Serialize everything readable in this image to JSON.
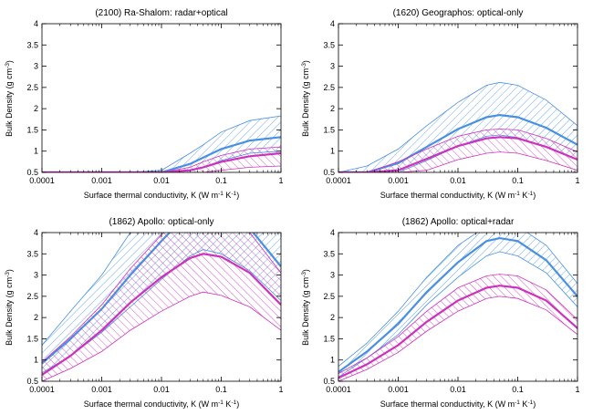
{
  "colors": {
    "blue": "#4a90e2",
    "magenta": "#cc33bb",
    "frame": "#000000"
  },
  "chart_data": [
    {
      "type": "line",
      "title": "(2100) Ra-Shalom: radar+optical",
      "xlabel": "Surface thermal conductivity, K (W m",
      "ylabel": "Bulk Density (g cm",
      "xscale": "log",
      "xlim": [
        0.0001,
        1
      ],
      "ylim": [
        0.5,
        4
      ],
      "xticks": [
        "0.0001",
        "0.001",
        "0.01",
        "0.1",
        "1"
      ],
      "yticks": [
        "0.5",
        "1",
        "1.5",
        "2",
        "2.5",
        "3",
        "3.5",
        "4"
      ],
      "x": [
        0.0001,
        0.0003,
        0.001,
        0.003,
        0.01,
        0.03,
        0.05,
        0.1,
        0.3,
        1
      ],
      "series": [
        {
          "color": "blue",
          "band": true,
          "mid": [
            0.5,
            0.5,
            0.5,
            0.5,
            0.5,
            0.7,
            0.85,
            1.05,
            1.25,
            1.33
          ],
          "lower": [
            0.5,
            0.5,
            0.5,
            0.5,
            0.5,
            0.55,
            0.62,
            0.78,
            0.95,
            1.0
          ],
          "upper": [
            0.5,
            0.5,
            0.5,
            0.5,
            0.55,
            0.95,
            1.15,
            1.45,
            1.72,
            1.83
          ]
        },
        {
          "color": "magenta",
          "band": true,
          "mid": [
            0.5,
            0.5,
            0.5,
            0.5,
            0.5,
            0.55,
            0.62,
            0.75,
            0.88,
            0.95
          ],
          "lower": [
            0.5,
            0.5,
            0.5,
            0.5,
            0.5,
            0.5,
            0.5,
            0.55,
            0.62,
            0.65
          ],
          "upper": [
            0.5,
            0.5,
            0.5,
            0.5,
            0.5,
            0.62,
            0.75,
            0.9,
            1.05,
            1.1
          ]
        }
      ]
    },
    {
      "type": "line",
      "title": "(1620) Geographos: optical-only",
      "xlabel": "Surface thermal conductivity, K (W m",
      "ylabel": "Bulk Density (g cm",
      "xscale": "log",
      "xlim": [
        0.0001,
        1
      ],
      "ylim": [
        0.5,
        4
      ],
      "xticks": [
        "0.0001",
        "0.001",
        "0.01",
        "0.1",
        "1"
      ],
      "yticks": [
        "0.5",
        "1",
        "1.5",
        "2",
        "2.5",
        "3",
        "3.5",
        "4"
      ],
      "x": [
        0.0001,
        0.0003,
        0.001,
        0.003,
        0.01,
        0.03,
        0.05,
        0.1,
        0.3,
        1
      ],
      "series": [
        {
          "color": "blue",
          "band": true,
          "mid": [
            0.5,
            0.5,
            0.72,
            1.1,
            1.52,
            1.8,
            1.85,
            1.8,
            1.55,
            1.15
          ],
          "lower": [
            0.5,
            0.5,
            0.5,
            0.78,
            1.12,
            1.35,
            1.38,
            1.32,
            1.1,
            0.8
          ],
          "upper": [
            0.5,
            0.65,
            1.05,
            1.6,
            2.15,
            2.55,
            2.62,
            2.55,
            2.2,
            1.6
          ]
        },
        {
          "color": "magenta",
          "band": true,
          "mid": [
            0.5,
            0.5,
            0.55,
            0.82,
            1.12,
            1.3,
            1.33,
            1.3,
            1.1,
            0.8
          ],
          "lower": [
            0.5,
            0.5,
            0.5,
            0.55,
            0.8,
            0.95,
            0.98,
            0.95,
            0.78,
            0.55
          ],
          "upper": [
            0.5,
            0.5,
            0.75,
            1.05,
            1.35,
            1.5,
            1.52,
            1.5,
            1.3,
            0.98
          ]
        }
      ]
    },
    {
      "type": "line",
      "title": "(1862) Apollo: optical-only",
      "xlabel": "Surface thermal conductivity, K (W m",
      "ylabel": "Bulk Density (g cm",
      "xscale": "log",
      "xlim": [
        0.0001,
        1
      ],
      "ylim": [
        0.5,
        4
      ],
      "xticks": [
        "0.0001",
        "0.001",
        "0.01",
        "0.1",
        "1"
      ],
      "yticks": [
        "0.5",
        "1",
        "1.5",
        "2",
        "2.5",
        "3",
        "3.5",
        "4"
      ],
      "x": [
        0.0001,
        0.0003,
        0.001,
        0.003,
        0.01,
        0.03,
        0.05,
        0.1,
        0.3,
        1
      ],
      "series": [
        {
          "color": "blue",
          "band": true,
          "mid": [
            0.92,
            1.5,
            2.2,
            3.0,
            3.8,
            4.5,
            4.7,
            4.6,
            4.1,
            3.2
          ],
          "lower": [
            0.7,
            1.1,
            1.65,
            2.25,
            2.9,
            3.45,
            3.6,
            3.5,
            3.1,
            2.4
          ],
          "upper": [
            1.35,
            2.15,
            3.0,
            4.0,
            5.0,
            5.8,
            6.0,
            5.9,
            5.3,
            4.2
          ]
        },
        {
          "color": "magenta",
          "band": true,
          "mid": [
            0.65,
            1.1,
            1.7,
            2.35,
            2.95,
            3.4,
            3.5,
            3.43,
            3.05,
            2.3
          ],
          "lower": [
            0.5,
            0.8,
            1.2,
            1.7,
            2.15,
            2.5,
            2.6,
            2.52,
            2.25,
            1.7
          ],
          "upper": [
            0.95,
            1.55,
            2.3,
            3.15,
            3.95,
            4.45,
            4.6,
            4.5,
            4.0,
            3.05
          ]
        }
      ]
    },
    {
      "type": "line",
      "title": "(1862) Apollo: optical+radar",
      "xlabel": "Surface thermal conductivity, K (W m",
      "ylabel": "Bulk Density (g cm",
      "xscale": "log",
      "xlim": [
        0.0001,
        1
      ],
      "ylim": [
        0.5,
        4
      ],
      "xticks": [
        "0.0001",
        "0.001",
        "0.01",
        "0.1",
        "1"
      ],
      "yticks": [
        "0.5",
        "1",
        "1.5",
        "2",
        "2.5",
        "3",
        "3.5",
        "4"
      ],
      "x": [
        0.0001,
        0.0003,
        0.001,
        0.003,
        0.01,
        0.03,
        0.05,
        0.1,
        0.3,
        1
      ],
      "series": [
        {
          "color": "blue",
          "band": true,
          "mid": [
            0.72,
            1.2,
            1.85,
            2.6,
            3.3,
            3.8,
            3.87,
            3.8,
            3.35,
            2.5
          ],
          "lower": [
            0.6,
            1.05,
            1.6,
            2.3,
            2.95,
            3.45,
            3.55,
            3.45,
            3.05,
            2.25
          ],
          "upper": [
            0.85,
            1.4,
            2.15,
            2.95,
            3.7,
            4.15,
            4.25,
            4.15,
            3.7,
            2.8
          ]
        },
        {
          "color": "magenta",
          "band": true,
          "mid": [
            0.58,
            0.9,
            1.35,
            1.9,
            2.4,
            2.7,
            2.75,
            2.7,
            2.4,
            1.75
          ],
          "lower": [
            0.5,
            0.78,
            1.18,
            1.68,
            2.15,
            2.45,
            2.5,
            2.45,
            2.18,
            1.6
          ],
          "upper": [
            0.68,
            1.05,
            1.55,
            2.15,
            2.7,
            2.98,
            3.02,
            2.98,
            2.65,
            1.95
          ]
        }
      ]
    }
  ]
}
